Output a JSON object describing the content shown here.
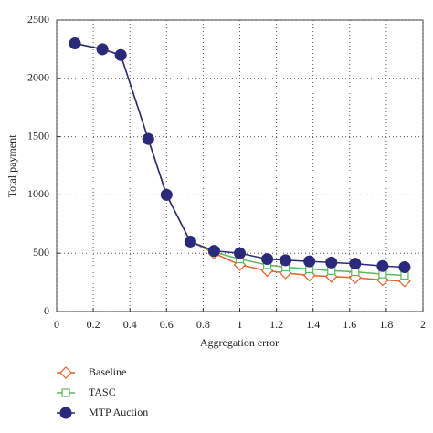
{
  "chart_data": {
    "type": "line",
    "xlabel": "Aggregation error",
    "ylabel": "Total payment",
    "x": [
      0.1,
      0.25,
      0.35,
      0.5,
      0.6,
      0.73,
      0.86,
      1.0,
      1.15,
      1.25,
      1.38,
      1.5,
      1.63,
      1.78,
      1.9
    ],
    "series": [
      {
        "name": "Baseline",
        "color": "#e0622a",
        "marker": "diamond",
        "values": [
          2300,
          2250,
          2200,
          1480,
          1000,
          600,
          500,
          400,
          350,
          330,
          310,
          300,
          290,
          270,
          260
        ]
      },
      {
        "name": "TASC",
        "color": "#5cb85c",
        "marker": "square",
        "values": [
          2300,
          2250,
          2200,
          1480,
          1000,
          600,
          510,
          450,
          400,
          380,
          365,
          350,
          340,
          320,
          310
        ]
      },
      {
        "name": "MTP Auction",
        "color": "#2b2a7a",
        "marker": "circle",
        "values": [
          2300,
          2250,
          2200,
          1480,
          1000,
          600,
          520,
          500,
          450,
          440,
          430,
          420,
          410,
          390,
          380
        ]
      }
    ],
    "xlim": [
      0,
      2
    ],
    "xticks": [
      0,
      0.2,
      0.4,
      0.6,
      0.8,
      1,
      1.2,
      1.4,
      1.6,
      1.8,
      2
    ],
    "ylim": [
      0,
      2500
    ],
    "yticks": [
      0,
      500,
      1000,
      1500,
      2000,
      2500
    ],
    "grid": true
  }
}
